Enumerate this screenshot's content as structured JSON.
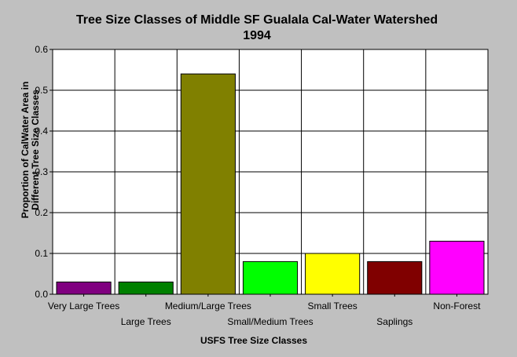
{
  "chart_data": {
    "type": "bar",
    "title": "Tree Size Classes of Middle SF Gualala Cal-Water Watershed",
    "subtitle": "1994",
    "xlabel": "USFS Tree Size Classes",
    "ylabel_line1": "Proportion of CalWater Area in",
    "ylabel_line2": "Different Tree Size Classes",
    "categories": [
      "Very Large Trees",
      "Large Trees",
      "Medium/Large Trees",
      "Small/Medium Trees",
      "Small Trees",
      "Saplings",
      "Non-Forest"
    ],
    "values": [
      0.03,
      0.03,
      0.54,
      0.08,
      0.1,
      0.08,
      0.13
    ],
    "colors": [
      "#800080",
      "#008000",
      "#808000",
      "#00ff00",
      "#ffff00",
      "#800000",
      "#ff00ff"
    ],
    "ylim": [
      0,
      0.6
    ],
    "yticks": [
      0.0,
      0.1,
      0.2,
      0.3,
      0.4,
      0.5,
      0.6
    ],
    "ytick_labels": [
      "0.0",
      "0.1",
      "0.2",
      "0.3",
      "0.4",
      "0.5",
      "0.6"
    ],
    "grid": true,
    "legend": "none"
  }
}
